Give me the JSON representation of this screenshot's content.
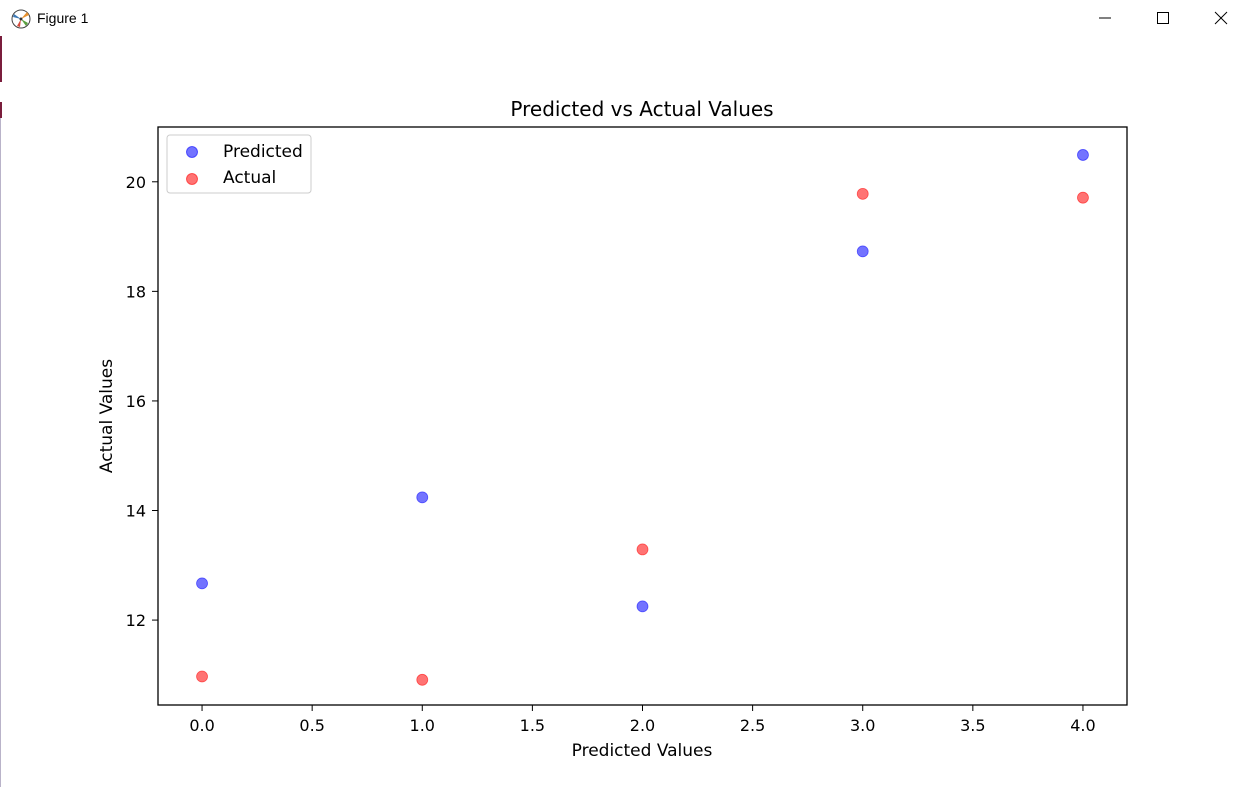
{
  "window": {
    "title": "Figure 1",
    "icons": {
      "app": "matplotlib-icon",
      "minimize": "minimize-icon",
      "maximize": "maximize-icon",
      "close": "close-icon"
    }
  },
  "chart_data": {
    "type": "scatter",
    "title": "Predicted vs Actual Values",
    "xlabel": "Predicted Values",
    "ylabel": "Actual Values",
    "xlim": [
      -0.2,
      4.2
    ],
    "ylim": [
      10.45,
      21.0
    ],
    "xticks": [
      0.0,
      0.5,
      1.0,
      1.5,
      2.0,
      2.5,
      3.0,
      3.5,
      4.0
    ],
    "xtick_labels": [
      "0.0",
      "0.5",
      "1.0",
      "1.5",
      "2.0",
      "2.5",
      "3.0",
      "3.5",
      "4.0"
    ],
    "yticks": [
      12,
      14,
      16,
      18,
      20
    ],
    "ytick_labels": [
      "12",
      "14",
      "16",
      "18",
      "20"
    ],
    "grid": false,
    "legend_position": "top-left",
    "series": [
      {
        "name": "Predicted",
        "color": "#0000ff",
        "alpha": 0.55,
        "x": [
          0,
          1,
          2,
          3,
          4
        ],
        "y": [
          12.67,
          14.24,
          12.25,
          18.73,
          20.49
        ]
      },
      {
        "name": "Actual",
        "color": "#ff0000",
        "alpha": 0.55,
        "x": [
          0,
          1,
          2,
          3,
          4
        ],
        "y": [
          10.97,
          10.91,
          13.29,
          19.78,
          19.71
        ]
      }
    ]
  }
}
